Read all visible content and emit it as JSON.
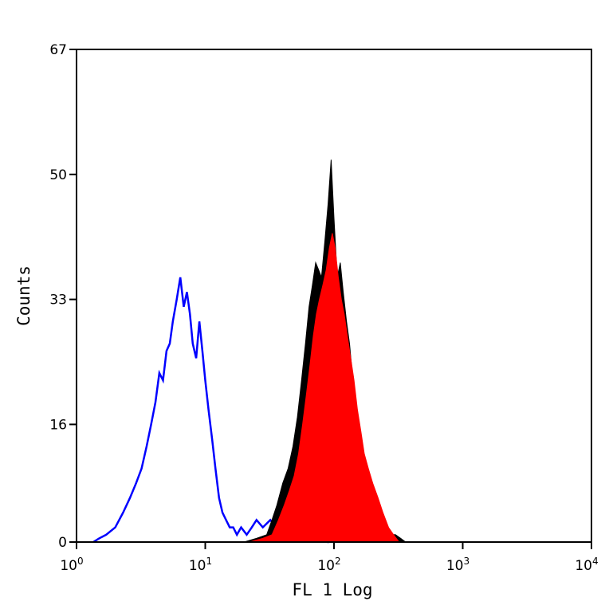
{
  "chart_data": {
    "type": "area",
    "xlabel": "FL 1 Log",
    "ylabel": "Counts",
    "x_scale": "log",
    "xlim": [
      1,
      10000
    ],
    "ylim": [
      0,
      67
    ],
    "grid": false,
    "y_ticks": [
      "0",
      "16",
      "33",
      "50",
      "67"
    ],
    "y_tick_values": [
      0,
      16,
      33,
      50,
      67
    ],
    "x_ticks": [
      {
        "base": "10",
        "exp": "0",
        "value": 1
      },
      {
        "base": "10",
        "exp": "1",
        "value": 10
      },
      {
        "base": "10",
        "exp": "2",
        "value": 100
      },
      {
        "base": "10",
        "exp": "3",
        "value": 1000
      },
      {
        "base": "10",
        "exp": "4",
        "value": 10000
      }
    ],
    "series": [
      {
        "style": "outline",
        "color": "#0000ff",
        "x": [
          1.35,
          1.5,
          1.7,
          2.0,
          2.3,
          2.6,
          2.9,
          3.2,
          3.5,
          3.8,
          4.1,
          4.4,
          4.7,
          5.0,
          5.3,
          5.6,
          6.0,
          6.4,
          6.8,
          7.2,
          7.6,
          8.0,
          8.5,
          9.0,
          9.5,
          10.0,
          10.6,
          11.3,
          12.0,
          12.8,
          13.6,
          14.5,
          15.5,
          16.5,
          17.6,
          19.0,
          21.0,
          23.0,
          25.0,
          28.0,
          32.0,
          36.0,
          40.0,
          45.0,
          50.0,
          55.0,
          62.0,
          70.0,
          80.0,
          90.0,
          100.0,
          110.0,
          125.0
        ],
        "y": [
          0,
          0.5,
          1,
          2,
          4,
          6,
          8,
          10,
          13,
          16,
          19,
          23,
          22,
          26,
          27,
          30,
          33,
          36,
          32,
          34,
          31,
          27,
          25,
          30,
          26,
          22,
          18,
          14,
          10,
          6,
          4,
          3,
          2,
          2,
          1,
          2,
          1,
          2,
          3,
          2,
          3,
          2,
          3,
          1,
          2,
          1,
          0.5,
          1,
          0.5,
          0,
          1,
          0.5,
          0
        ]
      },
      {
        "style": "filled",
        "color": "#000000",
        "x": [
          20.0,
          25.0,
          30.0,
          33.0,
          36.0,
          40.0,
          44.0,
          48.0,
          52.0,
          56.0,
          60.0,
          64.0,
          68.0,
          72.0,
          76.0,
          80.0,
          85.0,
          90.0,
          95.0,
          100.0,
          106.0,
          112.0,
          118.0,
          125.0,
          132.0,
          140.0,
          150.0,
          160.0,
          170.0,
          180.0,
          195.0,
          210.0,
          230.0,
          250.0,
          275.0,
          300.0,
          330.0,
          360.0
        ],
        "y": [
          0,
          0.5,
          1,
          3,
          5,
          8,
          10,
          13,
          17,
          22,
          27,
          32,
          35,
          38,
          37,
          36,
          41,
          46,
          52,
          44,
          36,
          38,
          34,
          30,
          27,
          22,
          18,
          14,
          12,
          10,
          8,
          5,
          4,
          2,
          1,
          1,
          0.5,
          0
        ]
      },
      {
        "style": "filled",
        "color": "#ff0000",
        "x": [
          22.0,
          28.0,
          33.0,
          37.0,
          41.0,
          45.0,
          49.0,
          53.0,
          57.0,
          61.0,
          65.0,
          69.0,
          73.0,
          77.0,
          82.0,
          87.0,
          92.0,
          97.0,
          102.0,
          108.0,
          114.0,
          120.0,
          127.0,
          135.0,
          143.0,
          152.0,
          162.0,
          172.0,
          185.0,
          200.0,
          220.0,
          240.0,
          265.0,
          290.0,
          320.0
        ],
        "y": [
          0,
          0.5,
          1,
          3,
          5,
          7,
          9,
          12,
          16,
          20,
          24,
          28,
          31,
          33,
          35,
          37,
          40,
          42,
          40,
          36,
          33,
          31,
          28,
          25,
          22,
          18,
          15,
          12,
          10,
          8,
          6,
          4,
          2,
          1,
          0
        ]
      }
    ]
  }
}
